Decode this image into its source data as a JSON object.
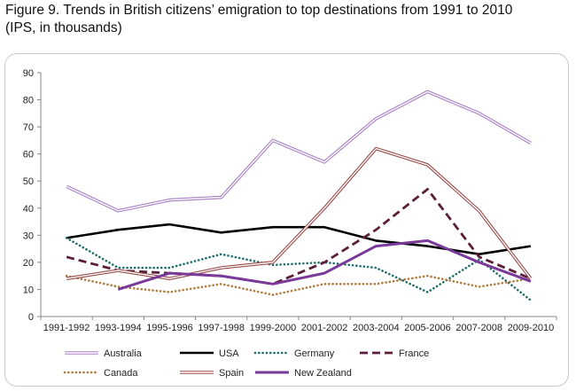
{
  "figure": {
    "title_line1": "Figure 9. Trends in British citizens’ emigration to top destinations from 1991 to 2010",
    "title_line2": "(IPS, in thousands)"
  },
  "chart_data": {
    "type": "line",
    "title": "Figure 9. Trends in British citizens’ emigration to top destinations from 1991 to 2010 (IPS, in thousands)",
    "xlabel": "",
    "ylabel": "",
    "ylim": [
      0,
      90
    ],
    "yticks": [
      0,
      10,
      20,
      30,
      40,
      50,
      60,
      70,
      80,
      90
    ],
    "grid": false,
    "legend_position": "bottom",
    "categories": [
      "1991-1992",
      "1993-1994",
      "1995-1996",
      "1997-1998",
      "1999-2000",
      "2001-2002",
      "2003-2004",
      "2005-2006",
      "2007-2008",
      "2009-2010"
    ],
    "series": [
      {
        "name": "Australia",
        "values": [
          48,
          39,
          43,
          44,
          65,
          57,
          73,
          83,
          75,
          64
        ],
        "color": "#a77fc4",
        "style": "double"
      },
      {
        "name": "USA",
        "values": [
          29,
          32,
          34,
          31,
          33,
          33,
          28,
          26,
          23,
          26
        ],
        "color": "#000000",
        "style": "solid"
      },
      {
        "name": "Germany",
        "values": [
          29,
          18,
          18,
          23,
          19,
          20,
          18,
          9,
          21,
          6
        ],
        "color": "#1f6e6a",
        "style": "dotted"
      },
      {
        "name": "France",
        "values": [
          22,
          17,
          16,
          15,
          12,
          20,
          32,
          47,
          22,
          14
        ],
        "color": "#5a1f3a",
        "style": "dashed"
      },
      {
        "name": "Canada",
        "values": [
          15,
          11,
          9,
          12,
          8,
          12,
          12,
          15,
          11,
          14
        ],
        "color": "#b07a3a",
        "style": "dotted"
      },
      {
        "name": "Spain",
        "values": [
          14,
          17,
          14,
          18,
          20,
          40,
          62,
          56,
          39,
          14
        ],
        "color": "#9a4a4a",
        "style": "double"
      },
      {
        "name": "New Zealand",
        "values": [
          null,
          10,
          16,
          15,
          12,
          16,
          26,
          28,
          20,
          13
        ],
        "color": "#7a3a9a",
        "style": "thick"
      }
    ]
  }
}
